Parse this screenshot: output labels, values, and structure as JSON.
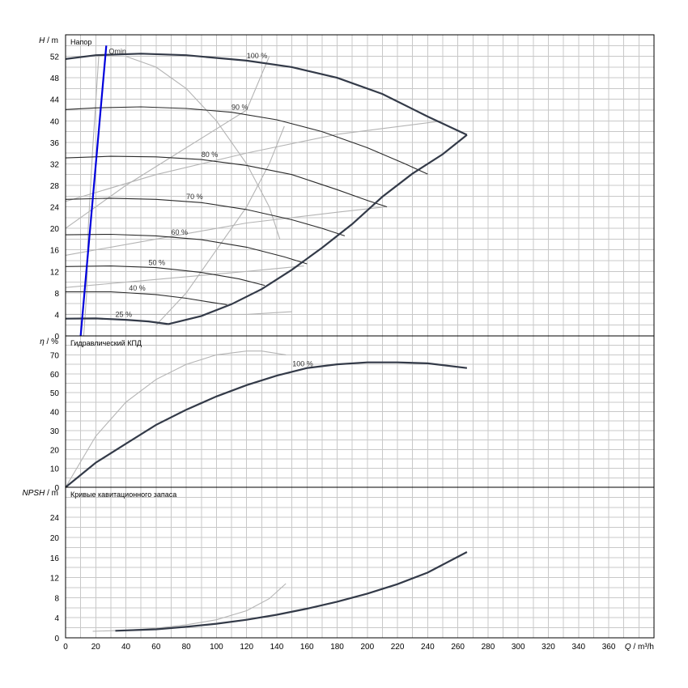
{
  "chart_data": [
    {
      "type": "line",
      "title": "Напор",
      "ylabel_symbol": "H",
      "ylabel_unit": "m",
      "ylim": [
        0,
        56
      ],
      "yticks": [
        0,
        4,
        8,
        12,
        16,
        20,
        24,
        28,
        32,
        36,
        40,
        44,
        48,
        52
      ],
      "xlim": [
        0,
        390
      ],
      "series": [
        {
          "name": "100 %",
          "points": [
            [
              0,
              51.5
            ],
            [
              20,
              52.2
            ],
            [
              50,
              52.5
            ],
            [
              80,
              52.2
            ],
            [
              120,
              51.2
            ],
            [
              150,
              50
            ],
            [
              180,
              48
            ],
            [
              210,
              45
            ],
            [
              240,
              40.8
            ],
            [
              266,
              37.4
            ]
          ]
        },
        {
          "name": "90 %",
          "points": [
            [
              0,
              42.1
            ],
            [
              20,
              42.4
            ],
            [
              50,
              42.6
            ],
            [
              80,
              42.3
            ],
            [
              110,
              41.6
            ],
            [
              140,
              40.2
            ],
            [
              170,
              38
            ],
            [
              200,
              35
            ],
            [
              225,
              32
            ],
            [
              240,
              30.1
            ]
          ]
        },
        {
          "name": "80 %",
          "points": [
            [
              0,
              33.1
            ],
            [
              30,
              33.4
            ],
            [
              60,
              33.3
            ],
            [
              90,
              32.8
            ],
            [
              120,
              31.7
            ],
            [
              150,
              30
            ],
            [
              180,
              27.2
            ],
            [
              200,
              25.2
            ],
            [
              213,
              24
            ]
          ]
        },
        {
          "name": "70 %",
          "points": [
            [
              0,
              25.4
            ],
            [
              30,
              25.6
            ],
            [
              60,
              25.4
            ],
            [
              90,
              24.8
            ],
            [
              120,
              23.5
            ],
            [
              150,
              21.6
            ],
            [
              170,
              20
            ],
            [
              185,
              18.6
            ]
          ]
        },
        {
          "name": "60 %",
          "points": [
            [
              0,
              18.8
            ],
            [
              30,
              18.9
            ],
            [
              60,
              18.6
            ],
            [
              90,
              17.9
            ],
            [
              120,
              16.5
            ],
            [
              145,
              14.7
            ],
            [
              160,
              13.4
            ]
          ]
        },
        {
          "name": "50 %",
          "points": [
            [
              0,
              12.9
            ],
            [
              30,
              13
            ],
            [
              60,
              12.7
            ],
            [
              90,
              11.8
            ],
            [
              115,
              10.6
            ],
            [
              132,
              9.4
            ]
          ]
        },
        {
          "name": "40 %",
          "points": [
            [
              0,
              8.2
            ],
            [
              30,
              8.2
            ],
            [
              60,
              7.7
            ],
            [
              80,
              7
            ],
            [
              95,
              6.3
            ],
            [
              107,
              5.8
            ]
          ]
        },
        {
          "name": "25 %",
          "points": [
            [
              0,
              3.2
            ],
            [
              20,
              3.25
            ],
            [
              40,
              3
            ],
            [
              55,
              2.7
            ],
            [
              68,
              2.2
            ]
          ]
        },
        {
          "name": "",
          "role": "envelope",
          "points": [
            [
              68,
              2.2
            ],
            [
              90,
              3.7
            ],
            [
              110,
              5.9
            ],
            [
              130,
              8.7
            ],
            [
              150,
              12.3
            ],
            [
              170,
              16.4
            ],
            [
              190,
              20.8
            ],
            [
              210,
              25.9
            ],
            [
              230,
              30.2
            ],
            [
              250,
              33.8
            ],
            [
              266,
              37.4
            ]
          ]
        }
      ],
      "ghost_series": [
        {
          "points": [
            [
              12,
              0
            ],
            [
              14,
              8
            ],
            [
              15,
              20
            ],
            [
              18,
              35
            ],
            [
              22,
              52
            ]
          ]
        },
        {
          "points": [
            [
              40,
              52
            ],
            [
              60,
              50
            ],
            [
              80,
              46
            ],
            [
              100,
              40
            ],
            [
              120,
              32
            ],
            [
              135,
              24
            ],
            [
              142,
              18
            ]
          ]
        },
        {
          "points": [
            [
              60,
              2
            ],
            [
              80,
              8
            ],
            [
              100,
              16
            ],
            [
              120,
              24
            ],
            [
              135,
              32
            ],
            [
              145,
              39
            ]
          ]
        },
        {
          "points": [
            [
              0,
              20
            ],
            [
              40,
              28
            ],
            [
              80,
              35
            ],
            [
              120,
              42
            ],
            [
              135,
              52
            ]
          ]
        },
        {
          "points": [
            [
              0,
              25
            ],
            [
              60,
              30
            ],
            [
              120,
              34
            ],
            [
              180,
              37.5
            ],
            [
              250,
              40
            ]
          ]
        },
        {
          "points": [
            [
              0,
              15
            ],
            [
              60,
              18
            ],
            [
              120,
              21
            ],
            [
              180,
              23
            ],
            [
              212,
              24
            ]
          ]
        },
        {
          "points": [
            [
              0,
              9
            ],
            [
              40,
              10
            ],
            [
              80,
              11
            ],
            [
              120,
              12
            ],
            [
              158,
              13
            ]
          ]
        },
        {
          "points": [
            [
              0,
              4
            ],
            [
              40,
              4
            ],
            [
              80,
              4
            ],
            [
              120,
              4
            ],
            [
              150,
              4.5
            ]
          ]
        }
      ],
      "qmin": {
        "label": "Qmin",
        "points": [
          [
            10,
            0
          ],
          [
            27,
            54
          ]
        ]
      }
    },
    {
      "type": "line",
      "title": "Гидравлический КПД",
      "ylabel_symbol": "η",
      "ylabel_unit": "%",
      "ylim": [
        0,
        80
      ],
      "yticks": [
        0,
        10,
        20,
        30,
        40,
        50,
        60,
        70
      ],
      "xlim": [
        0,
        390
      ],
      "series": [
        {
          "name": "100 %",
          "points": [
            [
              0,
              0
            ],
            [
              20,
              13
            ],
            [
              40,
              23
            ],
            [
              60,
              33
            ],
            [
              80,
              41
            ],
            [
              100,
              48
            ],
            [
              120,
              54
            ],
            [
              140,
              59
            ],
            [
              160,
              63
            ],
            [
              180,
              65
            ],
            [
              200,
              66
            ],
            [
              220,
              66
            ],
            [
              240,
              65.5
            ],
            [
              266,
              63
            ]
          ]
        }
      ],
      "ghost_series": [
        {
          "points": [
            [
              0,
              0
            ],
            [
              20,
              27
            ],
            [
              40,
              45
            ],
            [
              60,
              57
            ],
            [
              80,
              65
            ],
            [
              100,
              70
            ],
            [
              120,
              72
            ],
            [
              130,
              72
            ],
            [
              146,
              70
            ]
          ]
        }
      ]
    },
    {
      "type": "line",
      "title": "Кривые кавитационного запаса",
      "ylabel_symbol": "NPSH",
      "ylabel_unit": "m",
      "ylim": [
        0,
        30
      ],
      "yticks": [
        0,
        4,
        8,
        12,
        16,
        20,
        24
      ],
      "xlim": [
        0,
        390
      ],
      "xticks": [
        0,
        20,
        40,
        60,
        80,
        100,
        120,
        140,
        160,
        180,
        200,
        220,
        240,
        260,
        280,
        300,
        320,
        340,
        360
      ],
      "xlabel_symbol": "Q",
      "xlabel_unit": "m³/h",
      "series": [
        {
          "name": "",
          "points": [
            [
              33,
              1.4
            ],
            [
              60,
              1.7
            ],
            [
              80,
              2.2
            ],
            [
              100,
              2.8
            ],
            [
              120,
              3.6
            ],
            [
              140,
              4.6
            ],
            [
              160,
              5.8
            ],
            [
              180,
              7.2
            ],
            [
              200,
              8.8
            ],
            [
              220,
              10.7
            ],
            [
              240,
              13
            ],
            [
              266,
              17.1
            ]
          ]
        }
      ],
      "ghost_series": [
        {
          "points": [
            [
              18,
              1.3
            ],
            [
              40,
              1.5
            ],
            [
              60,
              1.9
            ],
            [
              80,
              2.6
            ],
            [
              100,
              3.6
            ],
            [
              120,
              5.4
            ],
            [
              135,
              7.8
            ],
            [
              146,
              10.8
            ]
          ]
        }
      ]
    }
  ]
}
